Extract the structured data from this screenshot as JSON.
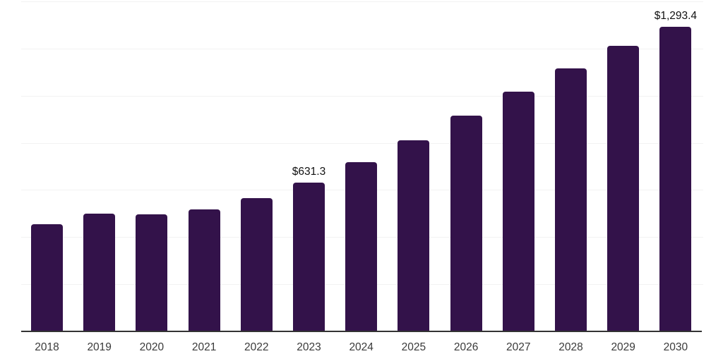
{
  "chart_data": {
    "type": "bar",
    "title": "",
    "xlabel": "",
    "ylabel": "",
    "categories": [
      "2018",
      "2019",
      "2020",
      "2021",
      "2022",
      "2023",
      "2024",
      "2025",
      "2026",
      "2027",
      "2028",
      "2029",
      "2030"
    ],
    "values": [
      454,
      500,
      497,
      517,
      564,
      631.3,
      718,
      811,
      916,
      1018,
      1116,
      1213,
      1293.4
    ],
    "ylim": [
      0,
      1400
    ],
    "gridline_interval": 200,
    "grid": "horizontal-only",
    "legend_position": "none",
    "y_axis_tick_labels_visible": false,
    "annotations": [
      {
        "category": "2023",
        "text": "$631.3"
      },
      {
        "category": "2030",
        "text": "$1,293.4"
      }
    ]
  },
  "colors": {
    "bar_fill": "#33124a",
    "gridline": "#f2f2f2",
    "axis_line": "#333333",
    "tick_label": "#3a3a3a",
    "data_label": "#111111",
    "background": "#ffffff"
  }
}
